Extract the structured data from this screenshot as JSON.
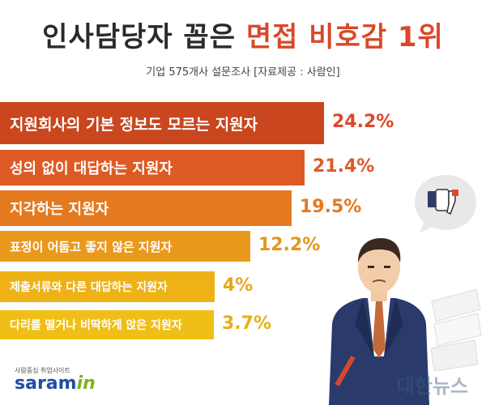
{
  "title_plain": "인사담당자 꼽은 ",
  "title_highlight": "면접 비호감 1위",
  "subtitle": "기업 575개사 설문조사  [자료제공 : 사람인]",
  "colors": {
    "accent": "#d9482a",
    "bars": [
      "#c9461f",
      "#de5a24",
      "#e37a1f",
      "#e99a1c",
      "#eeb217",
      "#f0bf17"
    ],
    "values": [
      "#d9482a",
      "#e05a2a",
      "#e37a1f",
      "#e5951c",
      "#e6a81a",
      "#e6b018"
    ]
  },
  "chart_data": {
    "type": "bar",
    "orientation": "horizontal",
    "categories": [
      "지원회사의 기본 정보도 모르는 지원자",
      "성의 없이 대답하는 지원자",
      "지각하는 지원자",
      "표정이 어둡고 좋지 않은 지원자",
      "제출서류와 다른 대답하는 지원자",
      "다리를 떨거나 비딱하게 앉은 지원자"
    ],
    "values": [
      24.2,
      21.4,
      19.5,
      12.2,
      4,
      3.7
    ],
    "value_labels": [
      "24.2%",
      "21.4%",
      "19.5%",
      "12.2%",
      "4%",
      "3.7%"
    ],
    "unit": "%"
  },
  "logo": {
    "small_text": "사람중심 취업사이트",
    "brand_main": "saram",
    "brand_accent": "in"
  },
  "watermark": "대한뉴스",
  "icons": [
    "thumbs-down-icon",
    "interviewer-illustration",
    "paper-stack-illustration"
  ]
}
